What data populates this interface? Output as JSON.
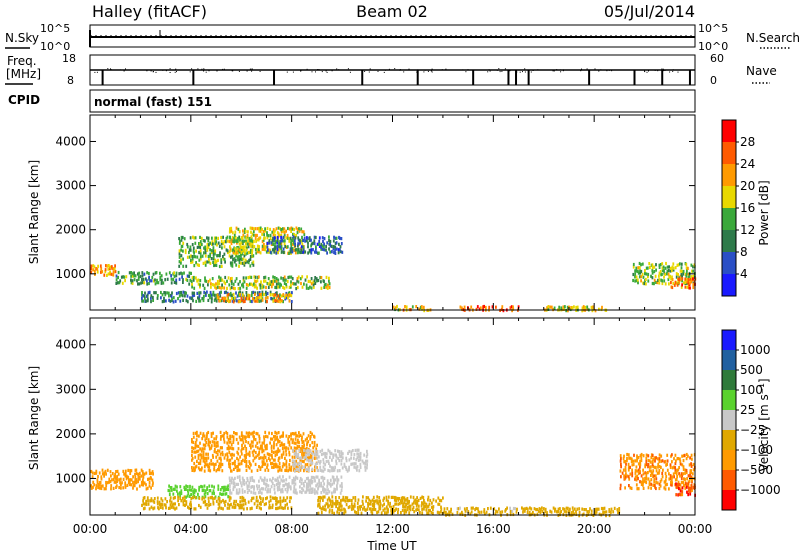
{
  "header": {
    "left": "Halley (fitACF)",
    "center": "Beam 02",
    "right": "05/Jul/2014"
  },
  "noise_panel": {
    "left_label": "N.Sky",
    "right_label": "N.Search",
    "ticks_left": [
      "10^5",
      "10^0"
    ],
    "ticks_right": [
      "10^5",
      "10^0"
    ]
  },
  "freq_panel": {
    "left_label_1": "Freq.",
    "left_label_2": "[MHz]",
    "right_label": "Nave",
    "ticks_left": [
      "18",
      "8"
    ],
    "ticks_right": [
      "60",
      "0"
    ]
  },
  "cpid_panel": {
    "left_label": "CPID",
    "text": "normal (fast) 151"
  },
  "colors": {
    "power": [
      "#1a1aff",
      "#2a4fc6",
      "#2e7a4a",
      "#3aa83a",
      "#e8d800",
      "#ff9a00",
      "#ff5a00",
      "#ff0000"
    ],
    "velocity": [
      "#ff0000",
      "#ff5a00",
      "#ff9a00",
      "#e0a800",
      "#c8c8c8",
      "#5ad22e",
      "#2f7a3a",
      "#2060a0",
      "#1a1aff"
    ]
  },
  "chart_data": [
    {
      "type": "heatmap",
      "title": "",
      "xlabel": "",
      "ylabel": "Slant Range [km]",
      "x_unit": "hours UT",
      "xlim": [
        0,
        24
      ],
      "ylim": [
        180,
        4600
      ],
      "y_ticks": [
        "1000",
        "2000",
        "3000",
        "4000"
      ],
      "colorbar": {
        "label": "Power [dB]",
        "range": [
          0,
          32
        ],
        "ticks": [
          "4",
          "8",
          "12",
          "16",
          "20",
          "24",
          "28"
        ]
      },
      "echo_regions": [
        {
          "t_start": 0.0,
          "t_end": 1.0,
          "range_low": 1000,
          "range_high": 1250,
          "value": 22
        },
        {
          "t_start": 1.0,
          "t_end": 4.0,
          "range_low": 800,
          "range_high": 1100,
          "value": 12
        },
        {
          "t_start": 3.5,
          "t_end": 6.5,
          "range_low": 1200,
          "range_high": 1900,
          "value": 14
        },
        {
          "t_start": 5.5,
          "t_end": 8.5,
          "range_low": 1500,
          "range_high": 2100,
          "value": 18
        },
        {
          "t_start": 7.0,
          "t_end": 10.0,
          "range_low": 1500,
          "range_high": 1900,
          "value": 8
        },
        {
          "t_start": 4.0,
          "t_end": 9.5,
          "range_low": 700,
          "range_high": 1000,
          "value": 16
        },
        {
          "t_start": 2.0,
          "t_end": 8.0,
          "range_low": 400,
          "range_high": 650,
          "value": 10
        },
        {
          "t_start": 5.0,
          "t_end": 8.0,
          "range_low": 400,
          "range_high": 600,
          "value": 22
        },
        {
          "t_start": 12.0,
          "t_end": 13.5,
          "range_low": 200,
          "range_high": 320,
          "value": 20
        },
        {
          "t_start": 14.5,
          "t_end": 17.0,
          "range_low": 200,
          "range_high": 320,
          "value": 26
        },
        {
          "t_start": 18.0,
          "t_end": 20.5,
          "range_low": 200,
          "range_high": 320,
          "value": 18
        },
        {
          "t_start": 21.5,
          "t_end": 24.0,
          "range_low": 800,
          "range_high": 1300,
          "value": 16
        },
        {
          "t_start": 23.0,
          "t_end": 24.0,
          "range_low": 700,
          "range_high": 950,
          "value": 24
        }
      ]
    },
    {
      "type": "heatmap",
      "title": "",
      "xlabel": "Time UT",
      "ylabel": "Slant Range [km]",
      "x_unit": "hours UT",
      "xlim": [
        0,
        24
      ],
      "ylim": [
        180,
        4600
      ],
      "x_ticks": [
        "00:00",
        "04:00",
        "08:00",
        "12:00",
        "16:00",
        "20:00",
        "00:00"
      ],
      "y_ticks": [
        "1000",
        "2000",
        "3000",
        "4000"
      ],
      "colorbar": {
        "label": "Velocity [m s⁻¹]",
        "ticks": [
          "1000",
          "500",
          "100",
          "25",
          "−25",
          "−100",
          "−500",
          "−1000"
        ]
      },
      "echo_regions": [
        {
          "t_start": 0.0,
          "t_end": 2.5,
          "range_low": 800,
          "range_high": 1250,
          "value": -300
        },
        {
          "t_start": 3.0,
          "t_end": 5.5,
          "range_low": 600,
          "range_high": 900,
          "value": 60
        },
        {
          "t_start": 5.5,
          "t_end": 10.0,
          "range_low": 700,
          "range_high": 1100,
          "value": 0
        },
        {
          "t_start": 4.0,
          "t_end": 9.0,
          "range_low": 1200,
          "range_high": 2100,
          "value": -200
        },
        {
          "t_start": 8.0,
          "t_end": 11.0,
          "range_low": 1200,
          "range_high": 1700,
          "value": 0
        },
        {
          "t_start": 2.0,
          "t_end": 8.0,
          "range_low": 350,
          "range_high": 650,
          "value": -60
        },
        {
          "t_start": 9.0,
          "t_end": 14.0,
          "range_low": 250,
          "range_high": 650,
          "value": -50
        },
        {
          "t_start": 14.0,
          "t_end": 17.0,
          "range_low": 200,
          "range_high": 400,
          "value": -40
        },
        {
          "t_start": 17.0,
          "t_end": 21.0,
          "range_low": 200,
          "range_high": 400,
          "value": -60
        },
        {
          "t_start": 21.0,
          "t_end": 24.0,
          "range_low": 800,
          "range_high": 1600,
          "value": -400
        },
        {
          "t_start": 23.2,
          "t_end": 24.0,
          "range_low": 650,
          "range_high": 950,
          "value": -900
        }
      ]
    }
  ]
}
